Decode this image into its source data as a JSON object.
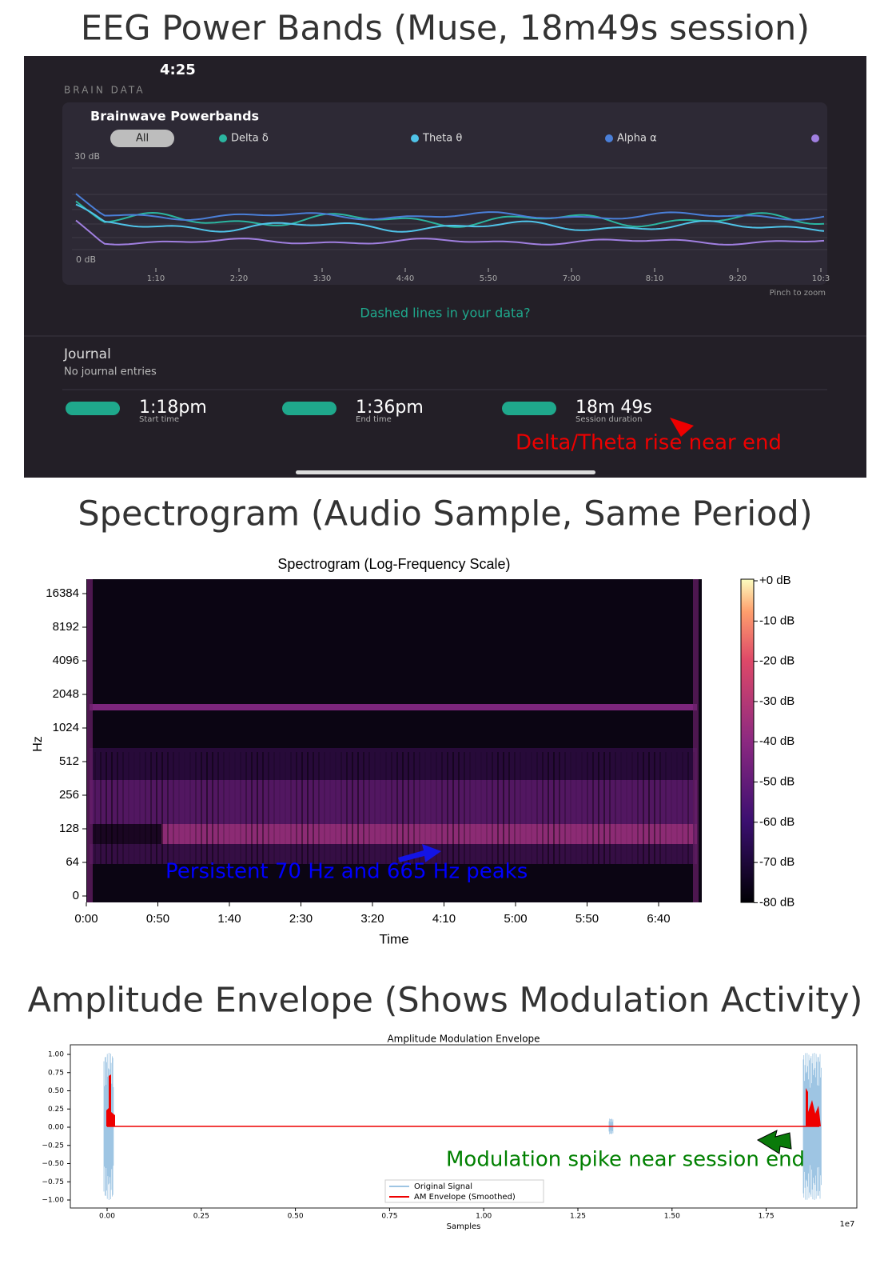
{
  "panels": [
    {
      "title": "EEG Power Bands (Muse, 18m49s session)",
      "annotation": "Delta/Theta rise near end",
      "app": {
        "clock": "4:25",
        "section": "BRAIN DATA",
        "card_title": "Brainwave Powerbands",
        "filters": [
          "All",
          "Delta δ",
          "Theta θ",
          "Alpha α"
        ],
        "y_top": "30 dB",
        "y_bottom": "0 dB",
        "x_labels": [
          "1:10",
          "2:20",
          "3:30",
          "4:40",
          "5:50",
          "7:00",
          "8:10",
          "9:20",
          "10:3"
        ],
        "zoom_hint": "Pinch to zoom",
        "link": "Dashed lines in your data?",
        "journal": "Journal",
        "journal_empty": "No journal entries",
        "stats": [
          {
            "value": "1:18pm",
            "label": "Start time"
          },
          {
            "value": "1:36pm",
            "label": "End time"
          },
          {
            "value": "18m 49s",
            "label": "Session duration"
          }
        ]
      }
    },
    {
      "title": "Spectrogram (Audio Sample, Same Period)",
      "annotation": "Persistent 70 Hz and 665 Hz peaks",
      "plot_title": "Spectrogram (Log-Frequency Scale)",
      "x_label": "Time",
      "y_label": "Hz",
      "y_ticks": [
        "0",
        "64",
        "128",
        "256",
        "512",
        "1024",
        "2048",
        "4096",
        "8192",
        "16384"
      ],
      "x_ticks": [
        "0:00",
        "0:50",
        "1:40",
        "2:30",
        "3:20",
        "4:10",
        "5:00",
        "5:50",
        "6:40"
      ],
      "colorbar_ticks": [
        "+0 dB",
        "-10 dB",
        "-20 dB",
        "-30 dB",
        "-40 dB",
        "-50 dB",
        "-60 dB",
        "-70 dB",
        "-80 dB"
      ]
    },
    {
      "title": "Amplitude Envelope (Shows Modulation Activity)",
      "annotation": "Modulation spike near session end",
      "plot_title": "Amplitude Modulation Envelope",
      "x_label": "Samples",
      "x_offset": "1e7",
      "y_ticks": [
        "1.00",
        "0.75",
        "0.50",
        "0.25",
        "0.00",
        "−0.25",
        "−0.50",
        "−0.75",
        "−1.00"
      ],
      "x_ticks": [
        "0.00",
        "0.25",
        "0.50",
        "0.75",
        "1.00",
        "1.25",
        "1.50",
        "1.75"
      ],
      "legend": [
        "Original Signal",
        "AM Envelope (Smoothed)"
      ]
    }
  ]
}
